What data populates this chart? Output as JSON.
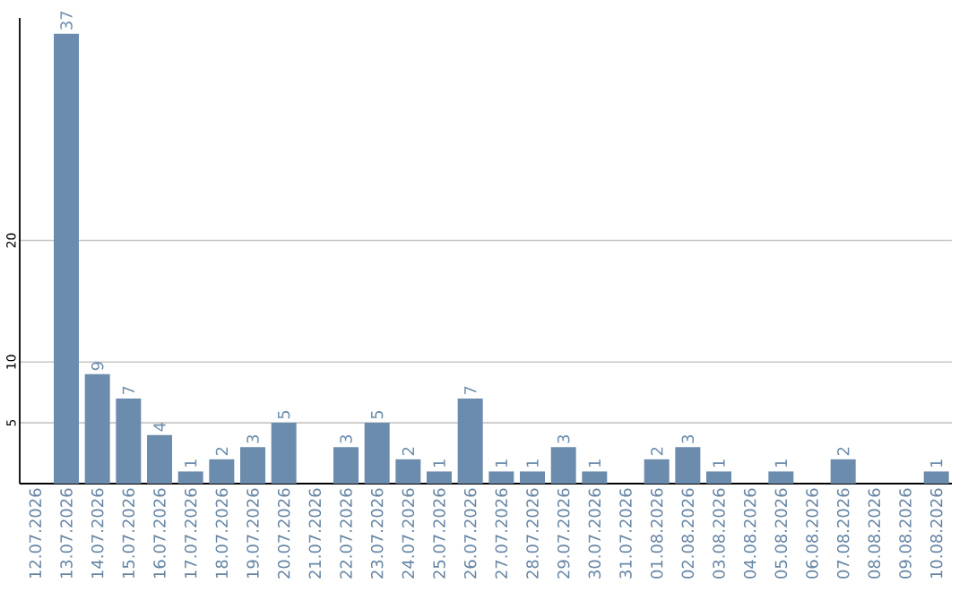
{
  "chart_data": {
    "type": "bar",
    "categories": [
      "12.07.2026",
      "13.07.2026",
      "14.07.2026",
      "15.07.2026",
      "16.07.2026",
      "17.07.2026",
      "18.07.2026",
      "19.07.2026",
      "20.07.2026",
      "21.07.2026",
      "22.07.2026",
      "23.07.2026",
      "24.07.2026",
      "25.07.2026",
      "26.07.2026",
      "27.07.2026",
      "28.07.2026",
      "29.07.2026",
      "30.07.2026",
      "31.07.2026",
      "01.08.2026",
      "02.08.2026",
      "03.08.2026",
      "04.08.2026",
      "05.08.2026",
      "06.08.2026",
      "07.08.2026",
      "08.08.2026",
      "09.08.2026",
      "10.08.2026"
    ],
    "values": [
      null,
      37,
      9,
      7,
      4,
      1,
      2,
      3,
      5,
      null,
      3,
      5,
      2,
      1,
      7,
      1,
      1,
      3,
      1,
      null,
      2,
      3,
      1,
      null,
      1,
      null,
      2,
      null,
      null,
      1
    ],
    "color": "#6b8cad",
    "ylim": [
      0,
      38.3
    ],
    "yticks": [
      5,
      10,
      20
    ],
    "grid": "y",
    "data_labels": true
  }
}
